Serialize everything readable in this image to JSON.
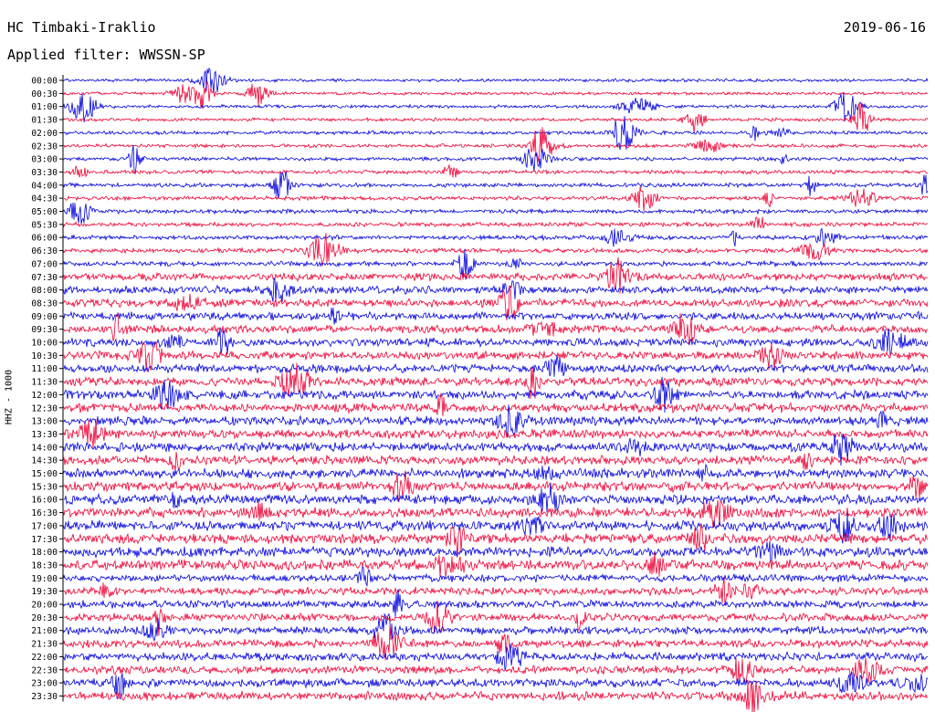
{
  "header": {
    "station": "HC Timbaki-Iraklio",
    "date": "2019-06-16",
    "filter": "Applied filter: WWSSN-SP"
  },
  "chart_data": {
    "type": "line",
    "title": "HC Timbaki-Iraklio",
    "ylabel": "HHZ - 1000",
    "y_tick_labels": [
      "00:00",
      "00:30",
      "01:00",
      "01:30",
      "02:00",
      "02:30",
      "03:00",
      "03:30",
      "04:00",
      "04:30",
      "05:00",
      "05:30",
      "06:00",
      "06:30",
      "07:00",
      "07:30",
      "08:00",
      "08:30",
      "09:00",
      "09:30",
      "10:00",
      "10:30",
      "11:00",
      "11:30",
      "12:00",
      "12:30",
      "13:00",
      "13:30",
      "14:00",
      "14:30",
      "15:00",
      "15:30",
      "16:00",
      "16:30",
      "17:00",
      "17:30",
      "18:00",
      "18:30",
      "19:00",
      "19:30",
      "20:00",
      "20:30",
      "21:00",
      "21:30",
      "22:00",
      "22:30",
      "23:00",
      "23:30"
    ],
    "trace_colors": [
      "#0000dd",
      "#ee0033"
    ],
    "grid": false,
    "legend": "none"
  }
}
